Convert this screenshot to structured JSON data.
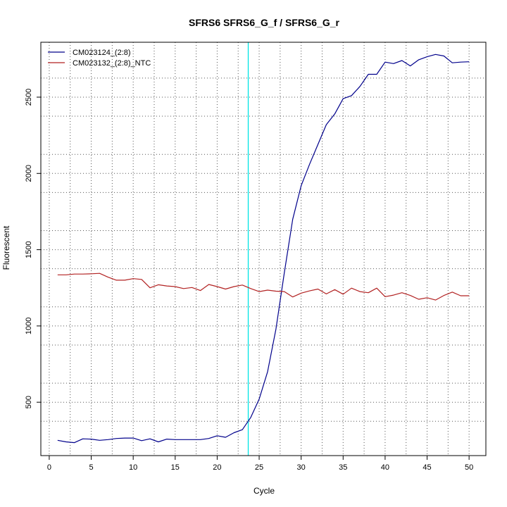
{
  "chart_data": {
    "type": "line",
    "title": "SFRS6  SFRS6_G_f / SFRS6_G_r",
    "xlabel": "Cycle",
    "ylabel": "Fluorescent",
    "xlim": [
      -1,
      52
    ],
    "ylim": [
      150,
      2860
    ],
    "xticks": [
      0,
      5,
      10,
      15,
      20,
      25,
      30,
      35,
      40,
      45,
      50
    ],
    "yticks": [
      500,
      1000,
      1500,
      2000,
      2500
    ],
    "grid": true,
    "grid_x": [
      2.5,
      7.5,
      12.5,
      17.5,
      22.5,
      27.5,
      32.5,
      37.5,
      42.5,
      47.5
    ],
    "grid_y": [
      375,
      625,
      875,
      1125,
      1375,
      1625,
      1875,
      2125,
      2375,
      2625
    ],
    "threshold_cycle": 23.7,
    "threshold_color": "#00e5e5",
    "legend_position": "top-left",
    "x": [
      1,
      2,
      3,
      4,
      5,
      6,
      7,
      8,
      9,
      10,
      11,
      12,
      13,
      14,
      15,
      16,
      17,
      18,
      19,
      20,
      21,
      22,
      23,
      24,
      25,
      26,
      27,
      28,
      29,
      30,
      31,
      32,
      33,
      34,
      35,
      36,
      37,
      38,
      39,
      40,
      41,
      42,
      43,
      44,
      45,
      46,
      47,
      48,
      49,
      50
    ],
    "series": [
      {
        "name": "CM023124_(2:8)",
        "color": "#00008b",
        "values": [
          250,
          240,
          235,
          260,
          258,
          250,
          255,
          262,
          265,
          265,
          248,
          260,
          240,
          258,
          255,
          255,
          255,
          255,
          262,
          280,
          270,
          300,
          320,
          400,
          520,
          700,
          980,
          1350,
          1700,
          1920,
          2060,
          2190,
          2320,
          2390,
          2490,
          2510,
          2570,
          2650,
          2650,
          2730,
          2720,
          2740,
          2705,
          2745,
          2765,
          2780,
          2770,
          2725,
          2730,
          2732
        ]
      },
      {
        "name": "CM023132_(2:8)_NTC",
        "color": "#b22222",
        "values": [
          1335,
          1335,
          1340,
          1340,
          1342,
          1345,
          1320,
          1300,
          1300,
          1310,
          1305,
          1250,
          1270,
          1262,
          1258,
          1245,
          1252,
          1232,
          1272,
          1258,
          1242,
          1258,
          1268,
          1245,
          1225,
          1235,
          1228,
          1225,
          1190,
          1215,
          1230,
          1242,
          1210,
          1238,
          1208,
          1248,
          1225,
          1218,
          1248,
          1192,
          1202,
          1218,
          1200,
          1175,
          1185,
          1170,
          1200,
          1222,
          1198,
          1198
        ]
      }
    ]
  }
}
